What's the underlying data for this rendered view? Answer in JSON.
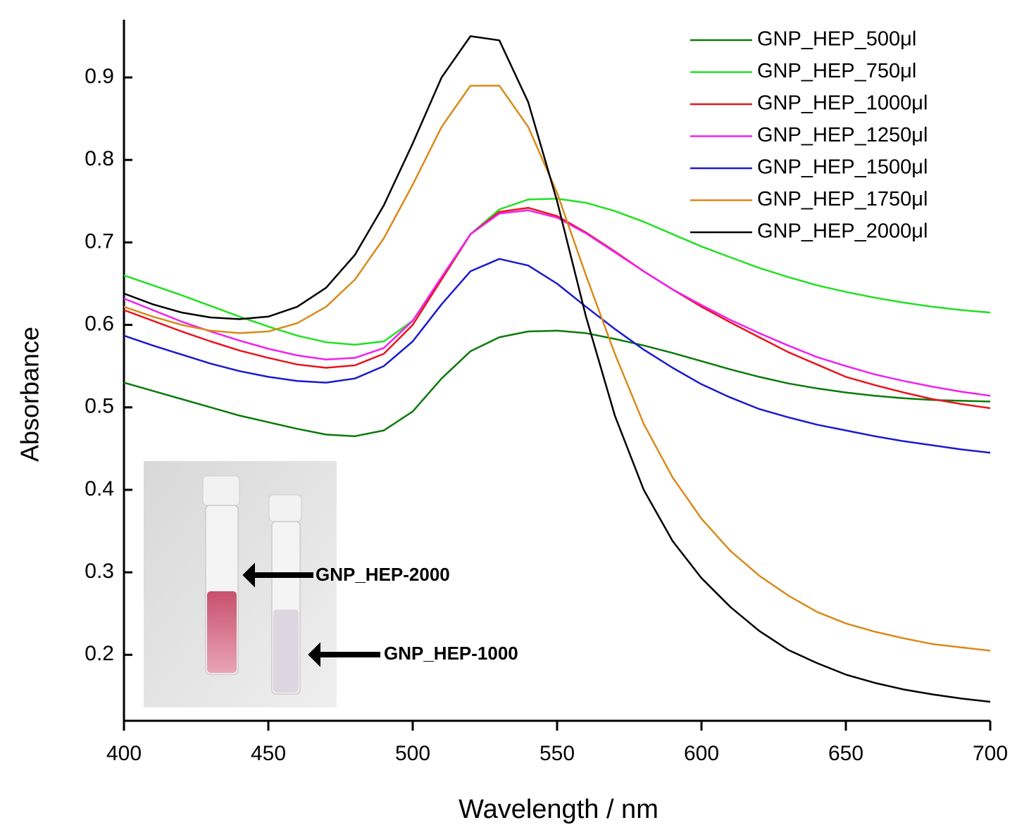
{
  "chart_data": {
    "type": "line",
    "x_label": "Wavelength / nm",
    "y_label": "Absorbance",
    "xlim": [
      400,
      700
    ],
    "ylim": [
      0.12,
      0.97
    ],
    "xticks": [
      400,
      450,
      500,
      550,
      600,
      650,
      700
    ],
    "yticks": [
      0.2,
      0.3,
      0.4,
      0.5,
      0.6,
      0.7,
      0.8,
      0.9
    ],
    "legend": "upper right",
    "x": [
      400,
      410,
      420,
      430,
      440,
      450,
      460,
      470,
      480,
      490,
      500,
      510,
      520,
      530,
      540,
      550,
      560,
      570,
      580,
      590,
      600,
      610,
      620,
      630,
      640,
      650,
      660,
      670,
      680,
      690,
      700
    ],
    "series": [
      {
        "name": "GNP_HEP_500μl",
        "color": "#0a7a0a",
        "values": [
          0.53,
          0.52,
          0.51,
          0.5,
          0.49,
          0.482,
          0.474,
          0.467,
          0.465,
          0.472,
          0.495,
          0.535,
          0.568,
          0.585,
          0.592,
          0.593,
          0.59,
          0.583,
          0.575,
          0.566,
          0.556,
          0.546,
          0.537,
          0.529,
          0.523,
          0.518,
          0.514,
          0.511,
          0.509,
          0.508,
          0.507
        ]
      },
      {
        "name": "GNP_HEP_750μl",
        "color": "#22e022",
        "values": [
          0.66,
          0.648,
          0.636,
          0.623,
          0.61,
          0.598,
          0.587,
          0.579,
          0.576,
          0.58,
          0.605,
          0.655,
          0.71,
          0.74,
          0.752,
          0.753,
          0.748,
          0.738,
          0.725,
          0.71,
          0.695,
          0.682,
          0.669,
          0.658,
          0.648,
          0.64,
          0.633,
          0.627,
          0.622,
          0.618,
          0.615
        ]
      },
      {
        "name": "GNP_HEP_1000μl",
        "color": "#e8141c",
        "values": [
          0.618,
          0.605,
          0.592,
          0.58,
          0.569,
          0.56,
          0.552,
          0.548,
          0.551,
          0.565,
          0.6,
          0.655,
          0.71,
          0.737,
          0.742,
          0.732,
          0.712,
          0.689,
          0.665,
          0.643,
          0.622,
          0.603,
          0.585,
          0.567,
          0.552,
          0.537,
          0.527,
          0.518,
          0.51,
          0.504,
          0.499
        ]
      },
      {
        "name": "GNP_HEP_1250μl",
        "color": "#f020f0",
        "values": [
          0.632,
          0.618,
          0.604,
          0.592,
          0.581,
          0.571,
          0.563,
          0.558,
          0.56,
          0.572,
          0.605,
          0.658,
          0.71,
          0.735,
          0.739,
          0.73,
          0.711,
          0.688,
          0.665,
          0.643,
          0.624,
          0.606,
          0.59,
          0.575,
          0.561,
          0.55,
          0.54,
          0.532,
          0.525,
          0.519,
          0.514
        ]
      },
      {
        "name": "GNP_HEP_1500μl",
        "color": "#1a1ad0",
        "values": [
          0.587,
          0.575,
          0.564,
          0.553,
          0.544,
          0.537,
          0.532,
          0.53,
          0.535,
          0.55,
          0.58,
          0.625,
          0.665,
          0.68,
          0.672,
          0.65,
          0.622,
          0.595,
          0.57,
          0.548,
          0.528,
          0.512,
          0.498,
          0.488,
          0.479,
          0.472,
          0.465,
          0.459,
          0.454,
          0.449,
          0.445
        ]
      },
      {
        "name": "GNP_HEP_1750μl",
        "color": "#d98a1a",
        "values": [
          0.622,
          0.61,
          0.6,
          0.593,
          0.59,
          0.592,
          0.602,
          0.622,
          0.655,
          0.705,
          0.77,
          0.84,
          0.89,
          0.89,
          0.84,
          0.76,
          0.66,
          0.565,
          0.48,
          0.415,
          0.365,
          0.326,
          0.296,
          0.272,
          0.252,
          0.238,
          0.228,
          0.22,
          0.213,
          0.209,
          0.205
        ]
      },
      {
        "name": "GNP_HEP_2000μl",
        "color": "#000000",
        "values": [
          0.638,
          0.625,
          0.615,
          0.609,
          0.607,
          0.61,
          0.622,
          0.645,
          0.685,
          0.745,
          0.82,
          0.9,
          0.95,
          0.945,
          0.87,
          0.75,
          0.61,
          0.49,
          0.4,
          0.338,
          0.293,
          0.258,
          0.229,
          0.206,
          0.19,
          0.176,
          0.166,
          0.158,
          0.152,
          0.147,
          0.143
        ]
      }
    ],
    "annotations": [
      "GNP_HEP-2000",
      "GNP_HEP-1000"
    ]
  }
}
